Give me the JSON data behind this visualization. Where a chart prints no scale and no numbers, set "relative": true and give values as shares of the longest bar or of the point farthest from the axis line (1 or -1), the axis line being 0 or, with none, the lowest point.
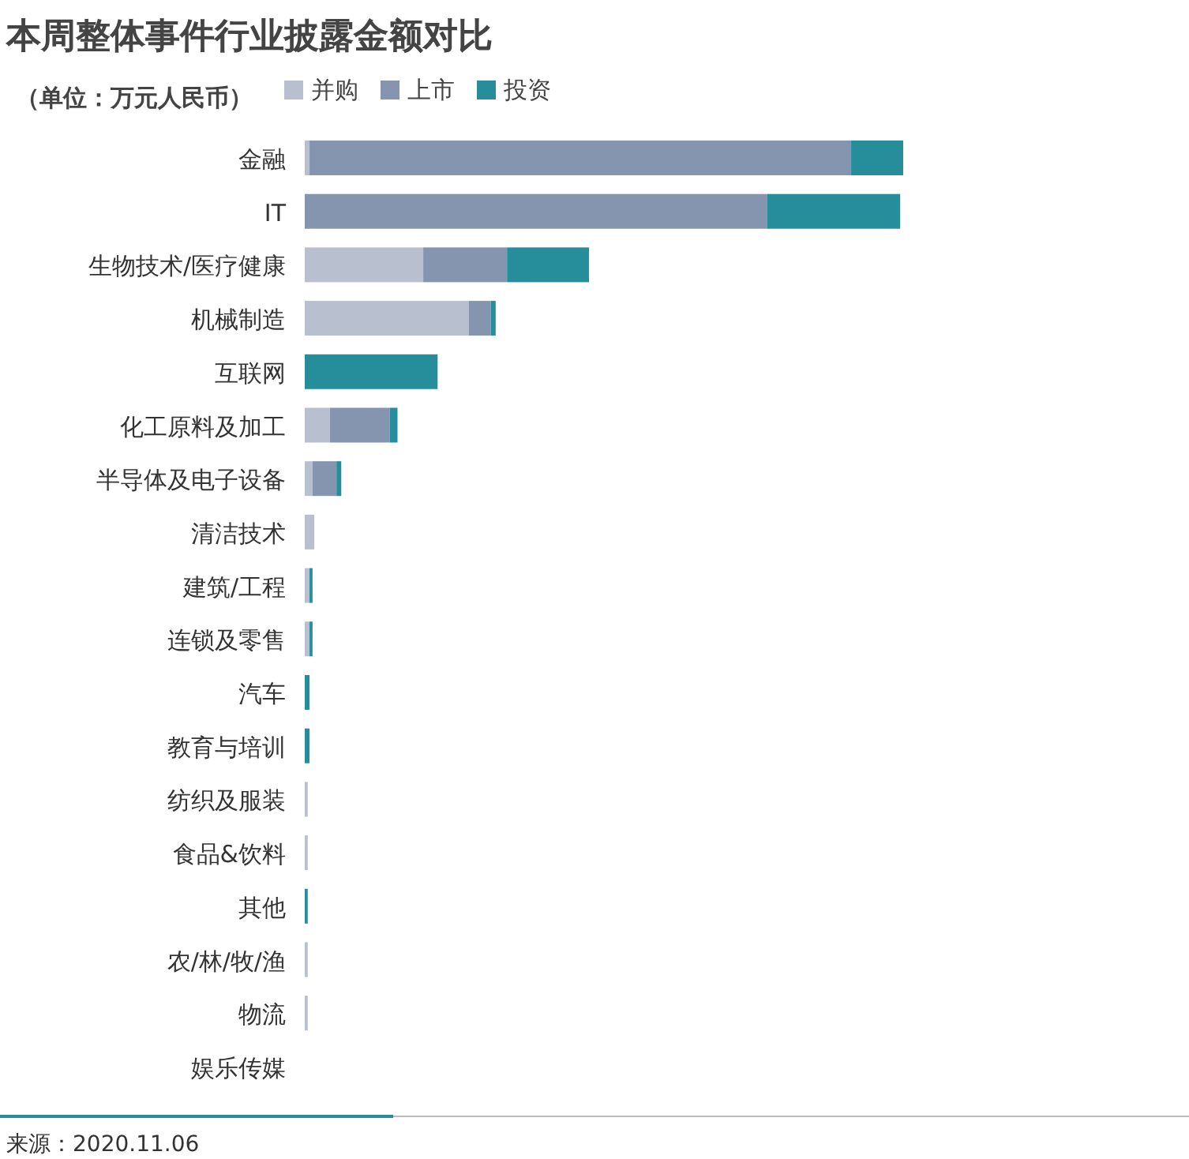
{
  "chart_data": {
    "type": "bar",
    "orientation": "horizontal",
    "stacked": true,
    "relative": true,
    "legend": "top",
    "title": "本周整体事件行业披露金额对比",
    "subtitle": "（单位：万元人民币）",
    "annotations": [
      "来源：2020.11.06"
    ],
    "categories": [
      "金融",
      "IT",
      "生物技术/医疗健康",
      "机械制造",
      "互联网",
      "化工原料及加工",
      "半导体及电子设备",
      "清洁技术",
      "建筑/工程",
      "连锁及零售",
      "汽车",
      "教育与培训",
      "纺织及服装",
      "食品&饮料",
      "其他",
      "农/林/牧/渔",
      "物流",
      "娱乐传媒"
    ],
    "series": [
      {
        "name": "并购",
        "color": "#b8c0cf",
        "values": [
          0.008,
          0,
          0.198,
          0.274,
          0,
          0.042,
          0.013,
          0.016,
          0.008,
          0.008,
          0,
          0,
          0.005,
          0.005,
          0,
          0.005,
          0.005,
          0
        ]
      },
      {
        "name": "上市",
        "color": "#8595b0",
        "values": [
          0.905,
          0.773,
          0.14,
          0.037,
          0,
          0.1,
          0.04,
          0,
          0,
          0,
          0,
          0,
          0,
          0,
          0,
          0,
          0,
          0
        ]
      },
      {
        "name": "投资",
        "color": "#258e9a",
        "values": [
          0.087,
          0.222,
          0.137,
          0.008,
          0.222,
          0.013,
          0.008,
          0,
          0.005,
          0.005,
          0.008,
          0.008,
          0,
          0,
          0.005,
          0,
          0,
          0
        ]
      }
    ]
  }
}
